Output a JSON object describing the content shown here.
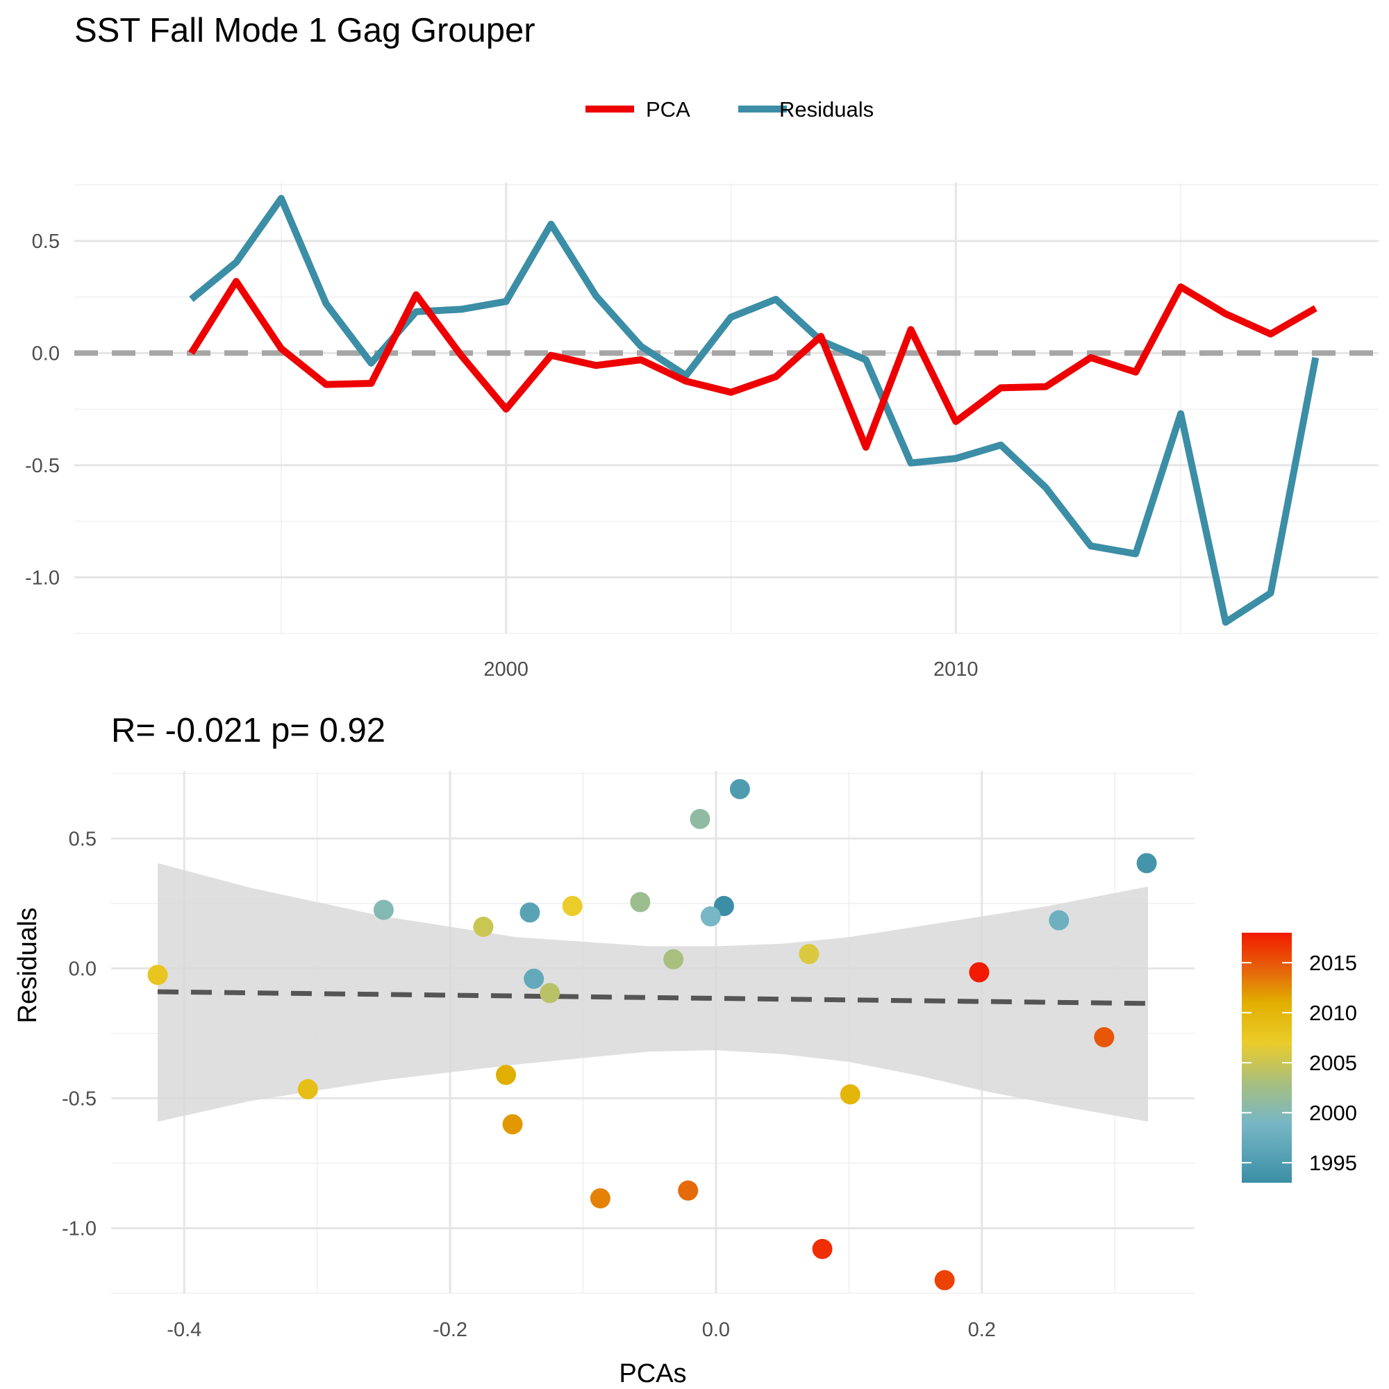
{
  "title": "SST Fall Mode 1 Gag Grouper",
  "chart_data": [
    {
      "type": "line",
      "legend": {
        "position": "top",
        "entries": [
          {
            "label": "PCA",
            "color": "#EE0000"
          },
          {
            "label": "Residuals",
            "color": "#3B8EA5"
          }
        ]
      },
      "xlim": [
        1990.4,
        2019.4
      ],
      "ylim": [
        -1.25,
        0.76
      ],
      "x_ticks": [
        2000,
        2010
      ],
      "x_tick_labels": [
        "2000",
        "2010"
      ],
      "y_ticks": [
        0.5,
        0.0,
        -0.5,
        -1.0
      ],
      "y_tick_labels": [
        "0.5",
        "0.0",
        "-0.5",
        "-1.0"
      ],
      "reference_line_y": 0.0,
      "grid": true,
      "x": [
        1993,
        1994,
        1995,
        1996,
        1997,
        1998,
        1999,
        2000,
        2001,
        2002,
        2003,
        2004,
        2005,
        2006,
        2007,
        2008,
        2009,
        2010,
        2011,
        2012,
        2013,
        2014,
        2015,
        2016,
        2017,
        2018
      ],
      "series": [
        {
          "name": "PCA",
          "color": "#EE0000",
          "values": [
            0.0,
            0.32,
            0.02,
            -0.14,
            -0.135,
            0.26,
            -0.01,
            -0.25,
            -0.01,
            -0.055,
            -0.03,
            -0.125,
            -0.175,
            -0.105,
            0.075,
            -0.42,
            0.105,
            -0.305,
            -0.155,
            -0.15,
            -0.02,
            -0.085,
            0.295,
            0.175,
            0.085,
            0.2
          ]
        },
        {
          "name": "Residuals",
          "color": "#3B8EA5",
          "values": [
            0.24,
            0.405,
            0.69,
            0.22,
            -0.045,
            0.185,
            0.195,
            0.23,
            0.575,
            0.255,
            0.03,
            -0.1,
            0.16,
            0.24,
            0.055,
            -0.03,
            -0.49,
            -0.47,
            -0.41,
            -0.6,
            -0.86,
            -0.895,
            -0.27,
            -1.2,
            -1.07,
            -0.02
          ]
        }
      ]
    },
    {
      "type": "scatter",
      "subtitle": "R= -0.021  p= 0.92",
      "xlabel": "PCAs",
      "ylabel": "Residuals",
      "xlim": [
        -0.455,
        0.36
      ],
      "ylim": [
        -1.25,
        0.76
      ],
      "x_ticks": [
        -0.4,
        -0.2,
        0.0,
        0.2
      ],
      "x_tick_labels": [
        "-0.4",
        "-0.2",
        "0.0",
        "0.2"
      ],
      "y_ticks": [
        0.5,
        0.0,
        -0.5,
        -1.0
      ],
      "y_tick_labels": [
        "0.5",
        "0.0",
        "-0.5",
        "-1.0"
      ],
      "grid": true,
      "points": [
        {
          "year": 1993,
          "x": 0.006,
          "y": 0.24
        },
        {
          "year": 1994,
          "x": 0.324,
          "y": 0.405
        },
        {
          "year": 1995,
          "x": 0.018,
          "y": 0.69
        },
        {
          "year": 1996,
          "x": -0.14,
          "y": 0.215
        },
        {
          "year": 1997,
          "x": -0.137,
          "y": -0.04
        },
        {
          "year": 1998,
          "x": 0.258,
          "y": 0.185
        },
        {
          "year": 1999,
          "x": -0.004,
          "y": 0.2
        },
        {
          "year": 2000,
          "x": -0.25,
          "y": 0.225
        },
        {
          "year": 2001,
          "x": -0.012,
          "y": 0.575
        },
        {
          "year": 2002,
          "x": -0.057,
          "y": 0.255
        },
        {
          "year": 2003,
          "x": -0.032,
          "y": 0.035
        },
        {
          "year": 2004,
          "x": -0.125,
          "y": -0.095
        },
        {
          "year": 2005,
          "x": -0.175,
          "y": 0.16
        },
        {
          "year": 2006,
          "x": 0.07,
          "y": 0.055
        },
        {
          "year": 2007,
          "x": -0.108,
          "y": 0.24
        },
        {
          "year": 2008,
          "x": -0.42,
          "y": -0.025
        },
        {
          "year": 2009,
          "x": -0.307,
          "y": -0.465
        },
        {
          "year": 2010,
          "x": 0.101,
          "y": -0.485
        },
        {
          "year": 2011,
          "x": -0.158,
          "y": -0.41
        },
        {
          "year": 2012,
          "x": -0.153,
          "y": -0.6
        },
        {
          "year": 2013,
          "x": -0.087,
          "y": -0.885
        },
        {
          "year": 2014,
          "x": -0.021,
          "y": -0.855
        },
        {
          "year": 2015,
          "x": 0.292,
          "y": -0.265
        },
        {
          "year": 2016,
          "x": 0.172,
          "y": -1.2
        },
        {
          "year": 2017,
          "x": 0.08,
          "y": -1.08
        },
        {
          "year": 2018,
          "x": 0.198,
          "y": -0.015
        }
      ],
      "trend": {
        "x": [
          -0.42,
          0.325
        ],
        "y": [
          -0.09,
          -0.135
        ]
      },
      "confidence_band": {
        "x": [
          -0.42,
          -0.35,
          -0.25,
          -0.15,
          -0.05,
          0.0,
          0.05,
          0.1,
          0.15,
          0.2,
          0.25,
          0.325
        ],
        "upper": [
          0.405,
          0.31,
          0.2,
          0.12,
          0.085,
          0.085,
          0.095,
          0.12,
          0.16,
          0.2,
          0.24,
          0.315
        ],
        "lower": [
          -0.59,
          -0.51,
          -0.43,
          -0.37,
          -0.32,
          -0.315,
          -0.33,
          -0.36,
          -0.41,
          -0.47,
          -0.52,
          -0.59
        ]
      },
      "colorbar": {
        "title": "",
        "range": [
          1993,
          2018
        ],
        "ticks": [
          1995,
          2000,
          2005,
          2010,
          2015
        ],
        "tick_labels": [
          "1995",
          "2000",
          "2005",
          "2010",
          "2015"
        ],
        "stops": [
          {
            "value": 1993,
            "color": "#3B8EA5"
          },
          {
            "value": 1999,
            "color": "#78B7C5"
          },
          {
            "value": 2003,
            "color": "#A8BF7E"
          },
          {
            "value": 2007,
            "color": "#EBCC2A"
          },
          {
            "value": 2011,
            "color": "#E1AF00"
          },
          {
            "value": 2014,
            "color": "#E56A0A"
          },
          {
            "value": 2018,
            "color": "#F21A00"
          }
        ]
      }
    }
  ]
}
